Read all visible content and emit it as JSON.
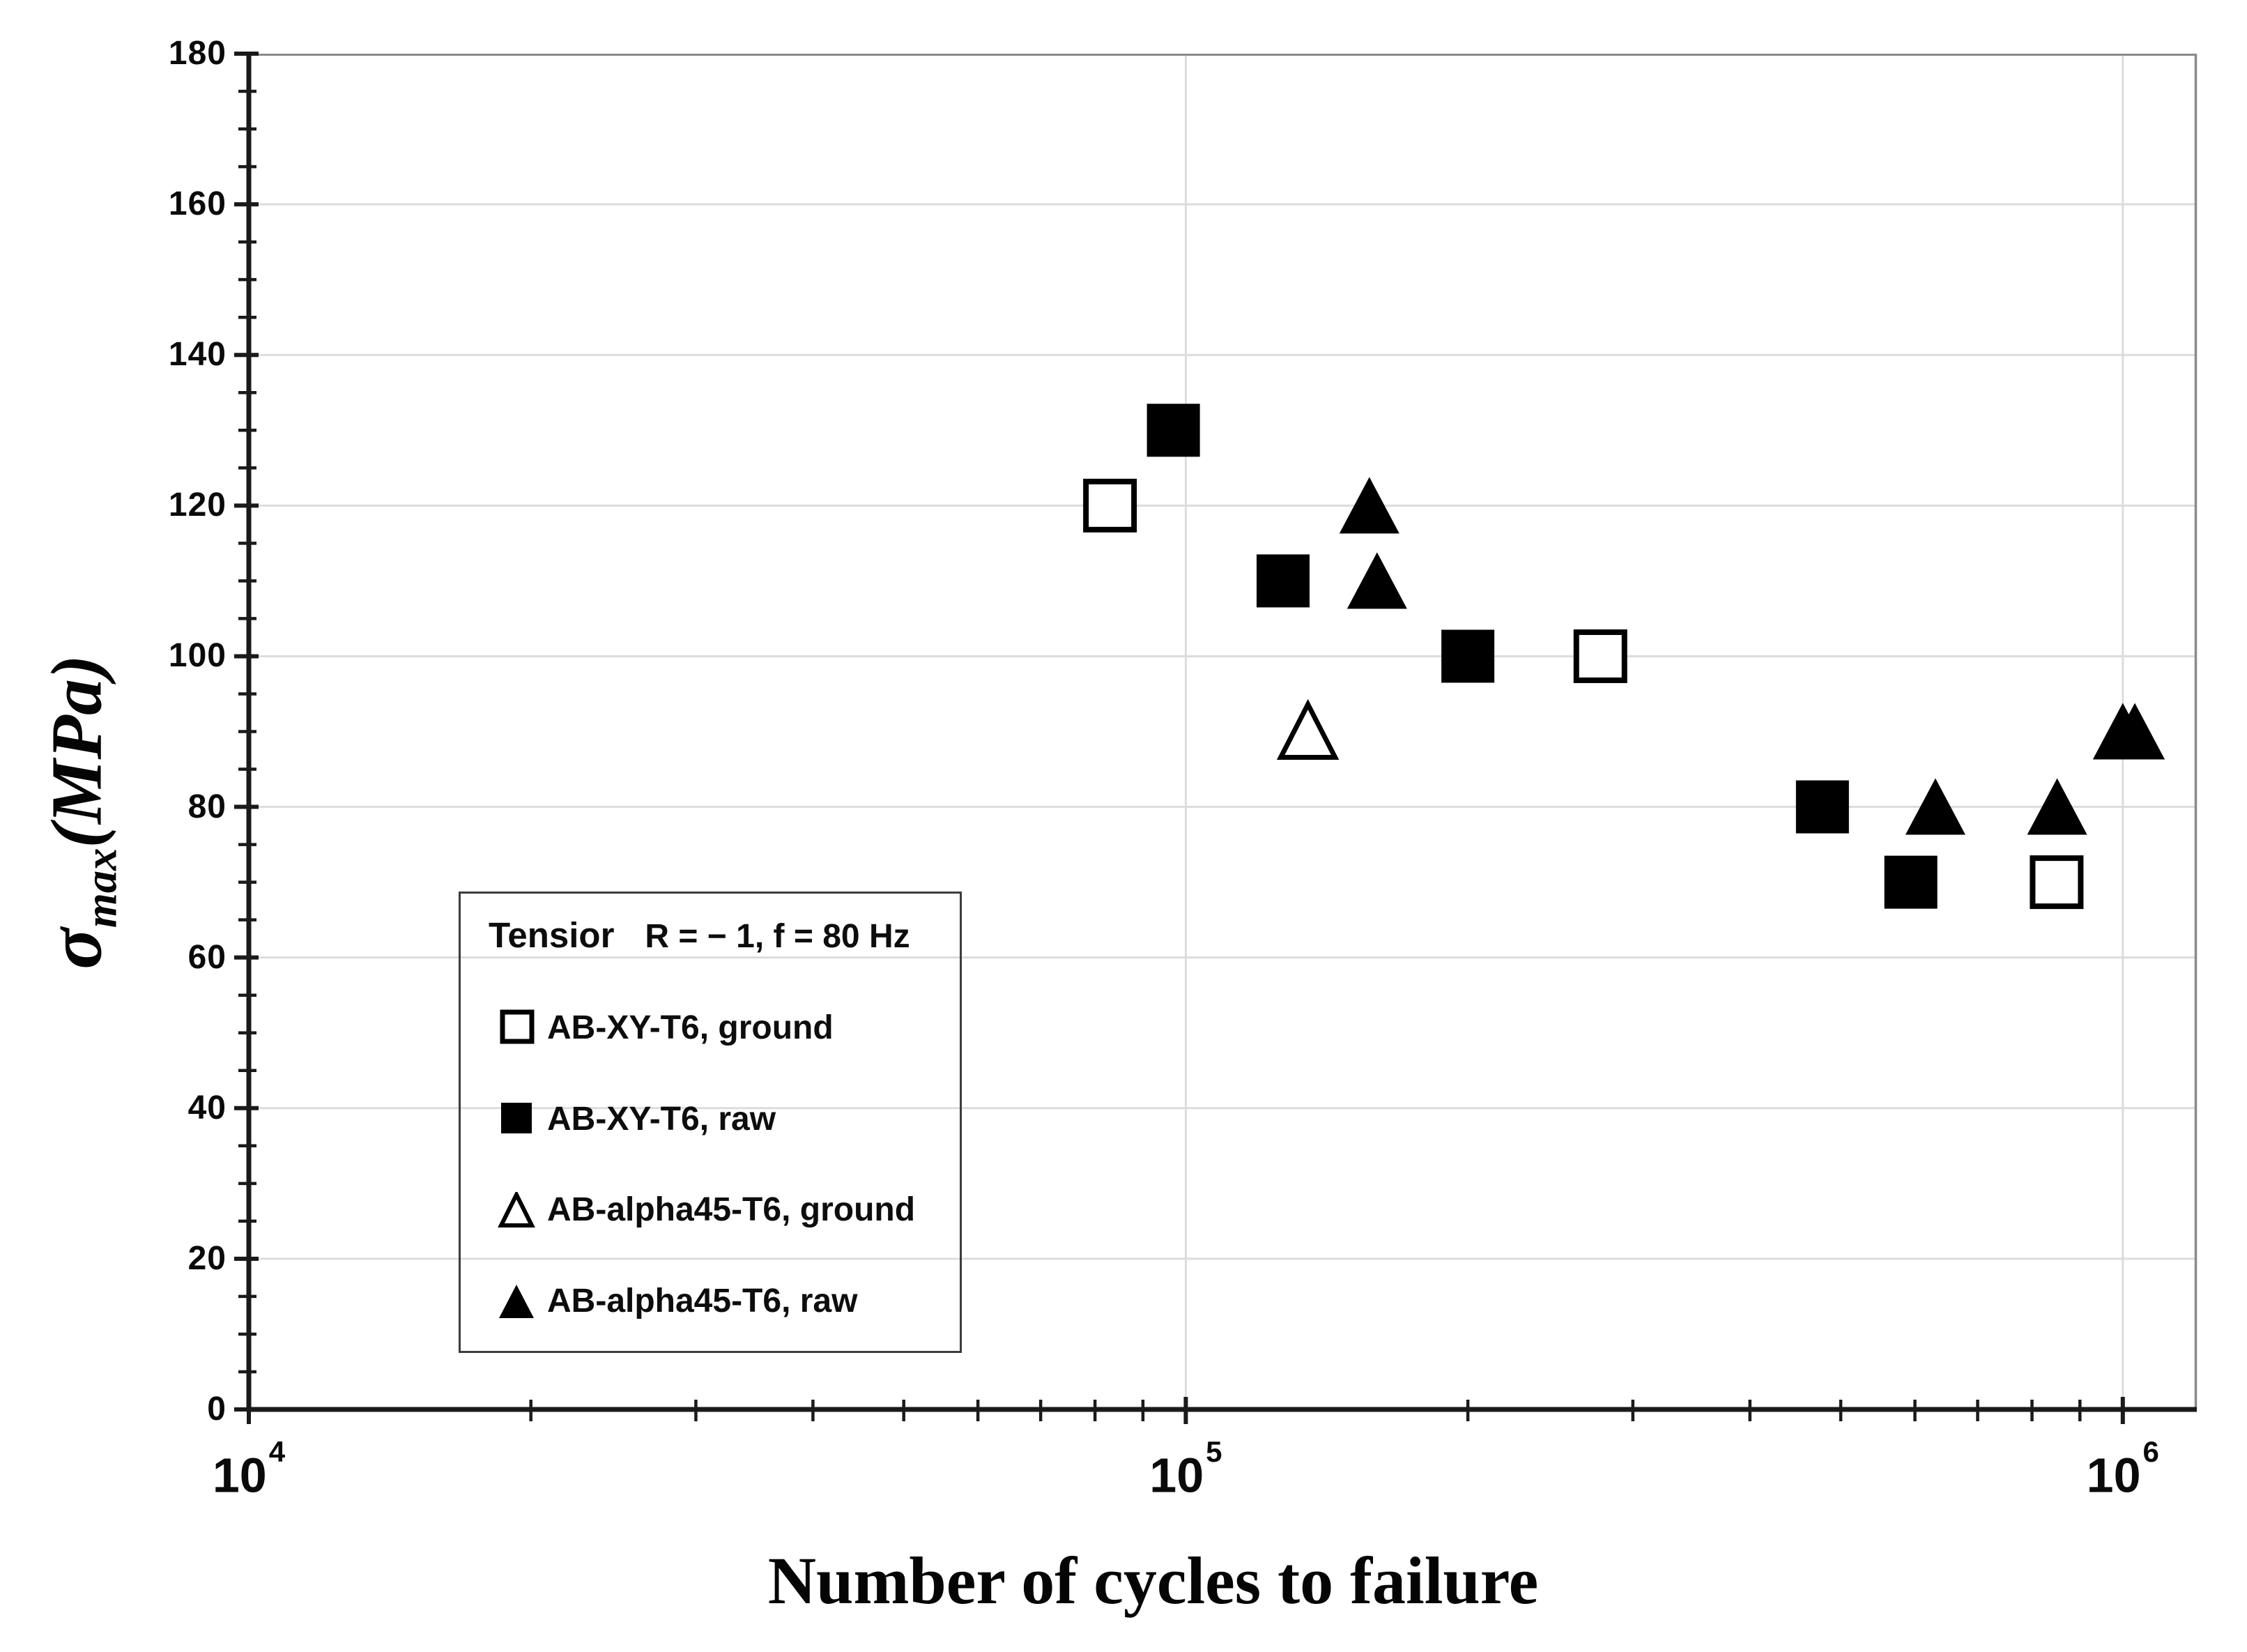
{
  "chart_data": {
    "type": "scatter",
    "x_axis": {
      "label": "Number of cycles to failure",
      "scale": "log",
      "log_range": [
        4,
        6.079
      ],
      "major_ticks": [
        {
          "value": 10000,
          "base": "10",
          "exp": "4"
        },
        {
          "value": 100000,
          "base": "10",
          "exp": "5"
        },
        {
          "value": 1000000,
          "base": "10",
          "exp": "6"
        }
      ],
      "minor_decades": [
        4,
        5
      ],
      "minor_multipliers": [
        2,
        3,
        4,
        5,
        6,
        7,
        8,
        9
      ],
      "gridlines": [
        100000,
        1000000
      ]
    },
    "y_axis": {
      "title_sigma": "σ",
      "title_sub": "max",
      "title_rest": "(MPa)",
      "range": [
        0,
        180
      ],
      "major_step": 20,
      "minor_step": 5,
      "major_ticks": [
        0,
        20,
        40,
        60,
        80,
        100,
        120,
        140,
        160,
        180
      ]
    },
    "legend": {
      "title_left": "Tensior",
      "title_right": "R = − 1, f = 80 Hz",
      "entries": [
        {
          "marker": "square-open",
          "label": "AB-XY-T6, ground"
        },
        {
          "marker": "square-filled",
          "label": "AB-XY-T6, raw"
        },
        {
          "marker": "triangle-open",
          "label": "AB-alpha45-T6, ground"
        },
        {
          "marker": "triangle-filled",
          "label": "AB-alpha45-T6, raw"
        }
      ]
    },
    "series": [
      {
        "name": "AB-XY-T6, ground",
        "marker": "square-open",
        "points": [
          [
            83000,
            120
          ],
          [
            277000,
            100
          ],
          [
            850000,
            70
          ]
        ]
      },
      {
        "name": "AB-XY-T6, raw",
        "marker": "square-filled",
        "points": [
          [
            97000,
            130
          ],
          [
            127000,
            110
          ],
          [
            200000,
            100
          ],
          [
            478000,
            80
          ],
          [
            594000,
            70
          ]
        ]
      },
      {
        "name": "AB-alpha45-T6, ground",
        "marker": "triangle-open",
        "points": [
          [
            135000,
            90
          ]
        ]
      },
      {
        "name": "AB-alpha45-T6, raw",
        "marker": "triangle-filled",
        "points": [
          [
            157000,
            120
          ],
          [
            160000,
            110
          ],
          [
            631000,
            80
          ],
          [
            851000,
            80
          ],
          [
            1000000,
            90
          ],
          [
            1030000,
            90
          ]
        ]
      }
    ],
    "colors": {
      "marker": "#000000",
      "axis": "#1a1a1a",
      "gridline": "#dcdcdc",
      "border_gray": "#8a8a8a",
      "text": "#0a0a0a"
    }
  }
}
